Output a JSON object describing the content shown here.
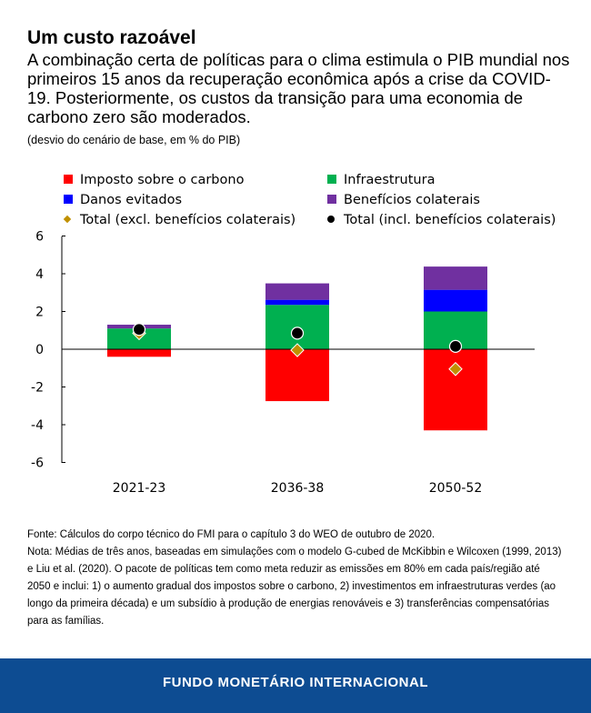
{
  "title": "Um custo razoável",
  "subtitle": "A combinação certa de políticas para o clima estimula o PIB mundial nos primeiros 15 anos da recuperação econômica após a crise da COVID-19. Posteriormente, os custos da transição para uma economia de carbono zero são moderados.",
  "unit": "(desvio do cenário de base, em % do PIB)",
  "chart_data": {
    "type": "bar",
    "stacked": true,
    "categories": [
      "2021-23",
      "2036-38",
      "2050-52"
    ],
    "ylim": [
      -6,
      6
    ],
    "yticks": [
      "6",
      "4",
      "2",
      "0",
      "-2",
      "-4",
      "-6"
    ],
    "legend_position": "top",
    "grid": false,
    "series": [
      {
        "name": "Imposto sobre o carbono",
        "color": "#ff0000",
        "values": [
          -0.4,
          -2.75,
          -4.3
        ]
      },
      {
        "name": "Infraestrutura",
        "color": "#00b050",
        "values": [
          1.1,
          2.35,
          2.0
        ]
      },
      {
        "name": "Danos evitados",
        "color": "#0000ff",
        "values": [
          0.0,
          0.27,
          1.15
        ]
      },
      {
        "name": "Benefícios colaterais",
        "color": "#7030a0",
        "values": [
          0.2,
          0.87,
          1.23
        ]
      }
    ],
    "markers": [
      {
        "name": "Total (excl. benefícios colaterais)",
        "shape": "diamond",
        "color": "#c09000",
        "values": [
          0.85,
          -0.05,
          -1.05
        ]
      },
      {
        "name": "Total (incl. benefícios colaterais)",
        "shape": "circle",
        "color": "#000000",
        "values": [
          1.05,
          0.85,
          0.15
        ]
      }
    ]
  },
  "notes": {
    "source": "Fonte: Cálculos do corpo técnico do FMI para o capítulo 3 do WEO de outubro de 2020.",
    "note": "Nota: Médias de três anos, baseadas em simulações com o modelo G-cubed de McKibbin e Wilcoxen (1999, 2013) e Liu et al. (2020). O pacote de políticas tem como meta reduzir as emissões em 80% em cada país/região até 2050 e inclui: 1) o aumento gradual dos impostos sobre o carbono, 2) investimentos em infraestruturas verdes (ao longo da primeira década) e um subsídio à produção de energias renováveis e 3) transferências compensatórias para as famílias."
  },
  "footer": "FUNDO MONETÁRIO INTERNACIONAL"
}
